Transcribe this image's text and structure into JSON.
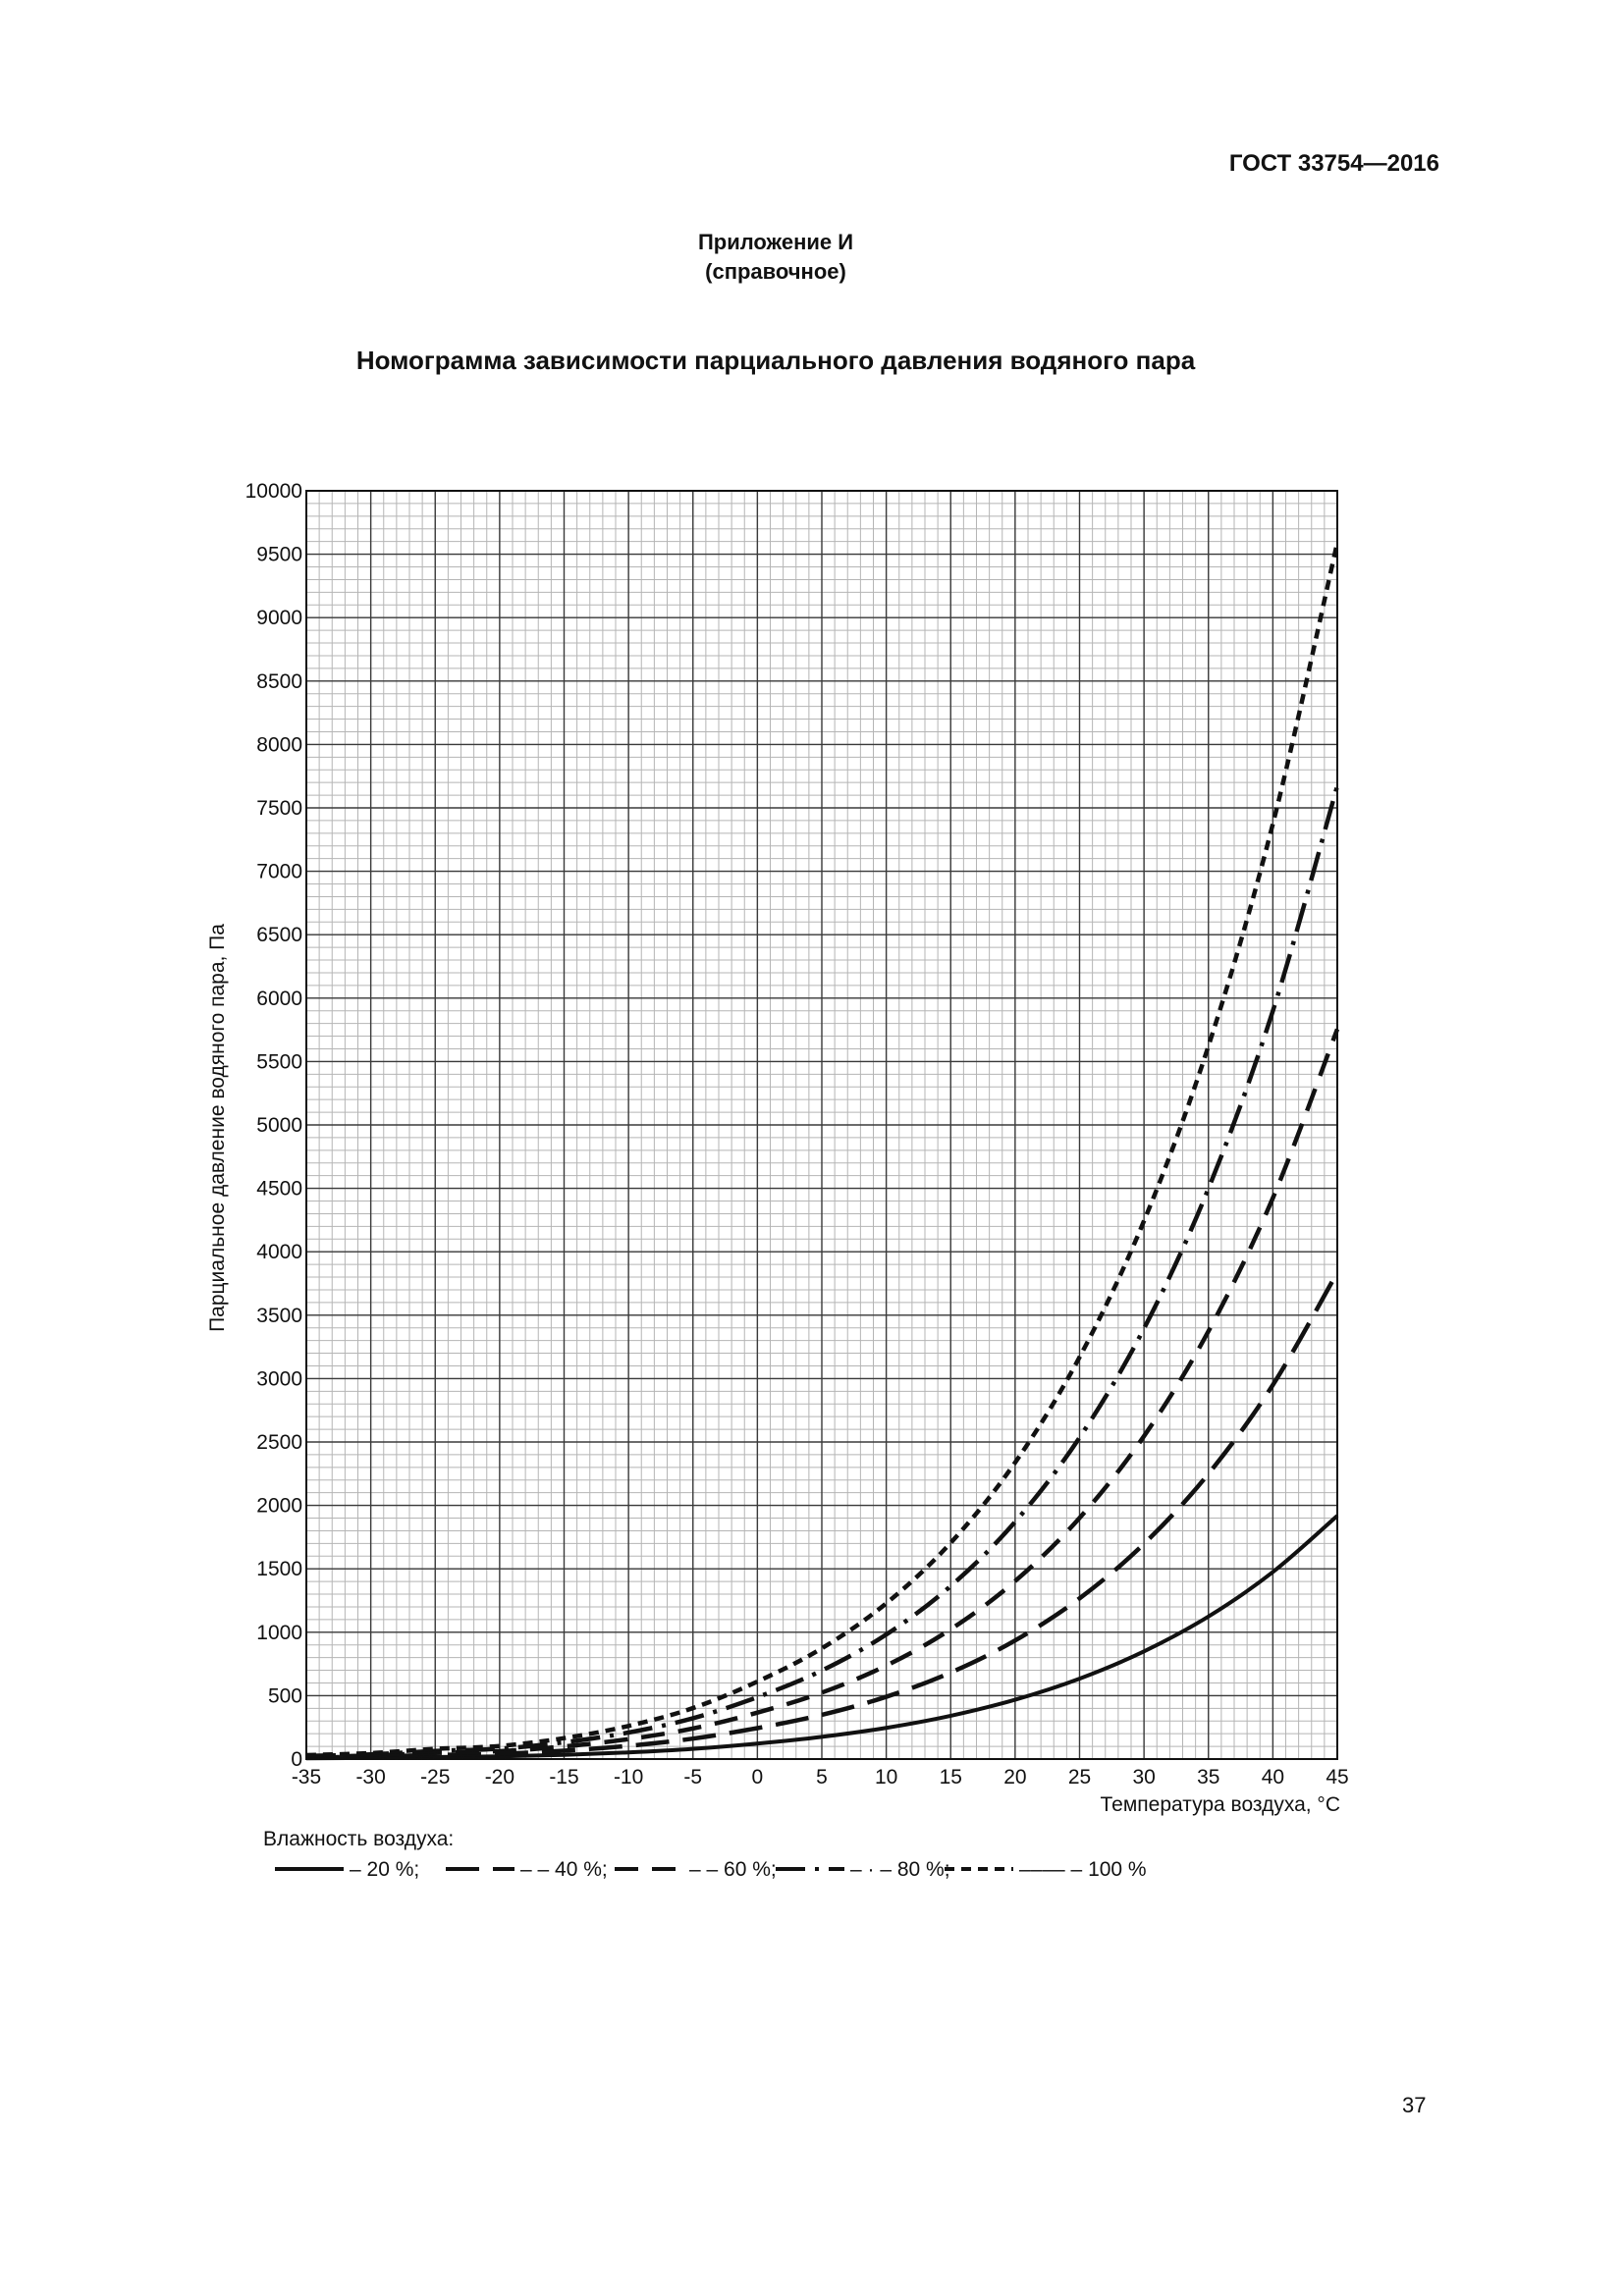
{
  "header": {
    "doc_code": "ГОСТ 33754—2016",
    "appendix_line1": "Приложение И",
    "appendix_line2": "(справочное)",
    "title": "Номограмма зависимости парциального давления водяного пара"
  },
  "footer": {
    "page_number": "37"
  },
  "chart_data": {
    "type": "line",
    "title": "Номограмма зависимости парциального давления водяного пара",
    "xlabel": "Температура воздуха, °С",
    "ylabel": "Парциальное давление водяного пара, Па",
    "xlim": [
      -35,
      45
    ],
    "ylim": [
      0,
      10000
    ],
    "x_ticks": [
      -35,
      -30,
      -25,
      -20,
      -15,
      -10,
      -5,
      0,
      5,
      10,
      15,
      20,
      25,
      30,
      35,
      40,
      45
    ],
    "y_ticks": [
      0,
      500,
      1000,
      1500,
      2000,
      2500,
      3000,
      3500,
      4000,
      4500,
      5000,
      5500,
      6000,
      6500,
      7000,
      7500,
      8000,
      8500,
      9000,
      9500,
      10000
    ],
    "grid": true,
    "legend_title": "Влажность воздуха:",
    "legend_placement": "bottom",
    "x": [
      -35,
      -30,
      -25,
      -20,
      -15,
      -10,
      -5,
      0,
      5,
      10,
      15,
      20,
      25,
      30,
      35,
      40,
      45
    ],
    "series": [
      {
        "name": "– 20 %;",
        "dash": "solid",
        "values": [
          6,
          9,
          16,
          21,
          33,
          52,
          80,
          122,
          175,
          246,
          341,
          468,
          634,
          849,
          1124,
          1475,
          1918
        ]
      },
      {
        "name": "– – 40 %;",
        "dash": "long-dash",
        "values": [
          12,
          19,
          32,
          41,
          66,
          104,
          161,
          244,
          349,
          491,
          682,
          935,
          1267,
          1697,
          2249,
          2950,
          3837
        ]
      },
      {
        "name": "– – 60 %;",
        "dash": "medium-dash",
        "values": [
          18,
          28,
          48,
          62,
          99,
          157,
          241,
          366,
          524,
          737,
          1023,
          1403,
          1901,
          2546,
          3373,
          4424,
          5755
        ]
      },
      {
        "name": "– · – 80 %;",
        "dash": "dash-dot",
        "values": [
          25,
          37,
          64,
          82,
          132,
          209,
          322,
          488,
          698,
          982,
          1364,
          1870,
          2535,
          3395,
          4498,
          5899,
          7673
        ]
      },
      {
        "name": "–––– – 100 %",
        "dash": "short-dash",
        "values": [
          31,
          47,
          80,
          103,
          165,
          261,
          402,
          611,
          873,
          1228,
          1705,
          2338,
          3169,
          4243,
          5622,
          7374,
          9591
        ]
      }
    ]
  }
}
